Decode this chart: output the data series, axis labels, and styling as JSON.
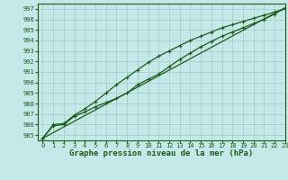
{
  "title": "Graphe pression niveau de la mer (hPa)",
  "bg_color": "#c5e8e8",
  "grid_color": "#a8cece",
  "line_color": "#1a5c1a",
  "xlim": [
    -0.5,
    23
  ],
  "ylim": [
    984.5,
    997.5
  ],
  "yticks": [
    985,
    986,
    987,
    988,
    989,
    990,
    991,
    992,
    993,
    994,
    995,
    996,
    997
  ],
  "xticks": [
    0,
    1,
    2,
    3,
    4,
    5,
    6,
    7,
    8,
    9,
    10,
    11,
    12,
    13,
    14,
    15,
    16,
    17,
    18,
    19,
    20,
    21,
    22,
    23
  ],
  "line_straight": [
    984.7,
    985.24,
    985.78,
    986.32,
    986.86,
    987.4,
    987.94,
    988.48,
    989.02,
    989.56,
    990.1,
    990.64,
    991.18,
    991.72,
    992.26,
    992.8,
    993.34,
    993.88,
    994.42,
    994.96,
    995.5,
    996.04,
    996.58,
    997.1
  ],
  "line_upper": [
    984.7,
    986.0,
    986.1,
    986.9,
    987.5,
    988.2,
    989.0,
    989.8,
    990.5,
    991.2,
    991.9,
    992.5,
    993.0,
    993.5,
    994.0,
    994.4,
    994.8,
    995.2,
    995.5,
    995.8,
    996.1,
    996.4,
    996.7,
    997.0
  ],
  "line_lower": [
    984.7,
    985.9,
    986.0,
    986.8,
    987.2,
    987.7,
    988.1,
    988.5,
    989.0,
    989.8,
    990.3,
    990.8,
    991.5,
    992.2,
    992.8,
    993.4,
    993.9,
    994.4,
    994.8,
    995.2,
    995.6,
    996.0,
    996.5,
    997.1
  ]
}
